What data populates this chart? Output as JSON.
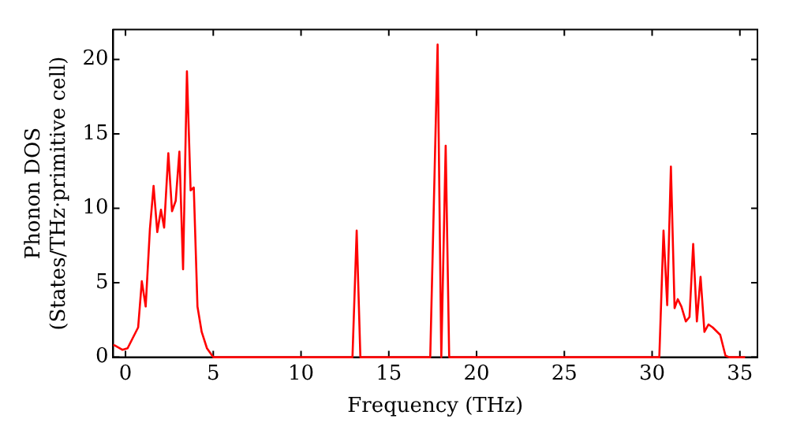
{
  "chart_data": {
    "type": "line",
    "xlabel": "Frequency (THz)",
    "ylabel": "Phonon DOS\n(States/THz·primitive cell)",
    "x": [
      -0.7,
      -0.63,
      -0.18,
      0.12,
      0.72,
      0.93,
      1.15,
      1.39,
      1.6,
      1.81,
      2.02,
      2.2,
      2.44,
      2.65,
      2.86,
      3.07,
      3.28,
      3.5,
      3.71,
      3.89,
      4.1,
      4.34,
      4.64,
      5.0,
      12.93,
      13.17,
      13.38,
      17.36,
      17.78,
      17.99,
      18.24,
      18.44,
      30.41,
      30.65,
      30.86,
      31.07,
      31.28,
      31.46,
      31.67,
      31.92,
      32.13,
      32.34,
      32.55,
      32.76,
      32.98,
      33.21,
      33.45,
      33.88,
      34.18,
      34.4,
      35.3
    ],
    "series": [
      {
        "color": "#ff0000",
        "values": [
          0.8,
          0.8,
          0.5,
          0.6,
          2.0,
          5.1,
          3.4,
          8.6,
          11.5,
          8.4,
          9.9,
          8.7,
          13.7,
          9.8,
          10.5,
          13.8,
          5.9,
          19.2,
          11.2,
          11.4,
          3.4,
          1.7,
          0.6,
          0,
          0,
          8.5,
          0,
          0,
          21.0,
          0,
          14.2,
          0,
          0,
          8.5,
          3.5,
          12.8,
          3.3,
          3.9,
          3.4,
          2.4,
          2.7,
          7.6,
          2.4,
          5.4,
          1.7,
          2.2,
          2.0,
          1.5,
          0.1,
          0,
          0
        ]
      }
    ],
    "xlim": [
      -0.7,
      36
    ],
    "xticks": [
      0,
      5,
      10,
      15,
      20,
      25,
      30,
      35
    ],
    "ylim": [
      0,
      22
    ],
    "yticks": [
      0,
      5,
      10,
      15,
      20
    ],
    "legend": false,
    "marker": "none",
    "line_style": "solid"
  }
}
